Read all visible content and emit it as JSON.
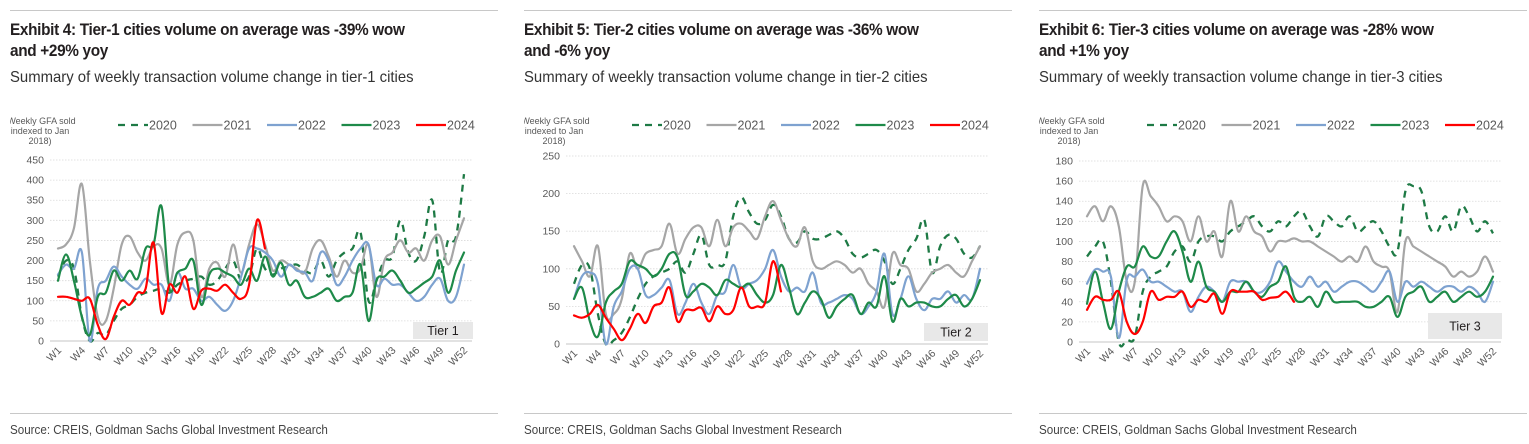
{
  "source": "Source: CREIS, Goldman Sachs Global Investment Research",
  "colors": {
    "2020": "#1e7a45",
    "2021": "#a6a6a6",
    "2022": "#7ea2d0",
    "2023": "#1e8a49",
    "2024": "#ff0000",
    "grid": "#d9d9d9",
    "tier_box": "#e8e8e8"
  },
  "chart_data": [
    {
      "type": "line",
      "title_line1": "Exhibit 4: Tier-1 cities volume on average was -39% wow",
      "title_line2": "and +29% yoy",
      "subtitle": "Summary of weekly transaction volume change in tier-1 cities",
      "ylabel": "(Weekly GFA sold indexed to Jan 2018)",
      "ylabel_lines": [
        "(Weekly GFA sold",
        "indexed to Jan",
        "2018)"
      ],
      "ylim": [
        0,
        450
      ],
      "yticks": [
        0,
        50,
        100,
        150,
        200,
        250,
        300,
        350,
        400,
        450
      ],
      "grid": true,
      "legend_position": "top",
      "tier_label": "Tier 1",
      "xtick_labels": [
        "W1",
        "W4",
        "W7",
        "W10",
        "W13",
        "W16",
        "W19",
        "W22",
        "W25",
        "W28",
        "W31",
        "W34",
        "W37",
        "W40",
        "W43",
        "W46",
        "W49",
        "W52"
      ],
      "x": [
        "W1",
        "W2",
        "W3",
        "W4",
        "W5",
        "W6",
        "W7",
        "W8",
        "W9",
        "W10",
        "W11",
        "W12",
        "W13",
        "W14",
        "W15",
        "W16",
        "W17",
        "W18",
        "W19",
        "W20",
        "W21",
        "W22",
        "W23",
        "W24",
        "W25",
        "W26",
        "W27",
        "W28",
        "W29",
        "W30",
        "W31",
        "W32",
        "W33",
        "W34",
        "W35",
        "W36",
        "W37",
        "W38",
        "W39",
        "W40",
        "W41",
        "W42",
        "W43",
        "W44",
        "W45",
        "W46",
        "W47",
        "W48",
        "W49",
        "W50",
        "W51",
        "W52"
      ],
      "series": [
        {
          "name": "2020",
          "style": "dashed",
          "values": [
            160,
            200,
            180,
            60,
            0,
            20,
            15,
            50,
            80,
            90,
            110,
            120,
            125,
            130,
            120,
            140,
            150,
            155,
            160,
            140,
            150,
            180,
            200,
            150,
            160,
            230,
            180,
            165,
            180,
            185,
            190,
            175,
            170,
            200,
            160,
            200,
            220,
            230,
            270,
            100,
            150,
            200,
            210,
            300,
            220,
            200,
            260,
            350,
            170,
            250,
            260,
            415
          ]
        },
        {
          "name": "2021",
          "style": "solid",
          "values": [
            230,
            240,
            280,
            390,
            200,
            60,
            50,
            130,
            240,
            260,
            220,
            200,
            235,
            230,
            140,
            240,
            270,
            250,
            110,
            180,
            195,
            160,
            240,
            170,
            240,
            290,
            240,
            175,
            200,
            190,
            180,
            170,
            230,
            250,
            210,
            160,
            200,
            170,
            180,
            240,
            110,
            200,
            220,
            250,
            220,
            230,
            200,
            250,
            260,
            190,
            250,
            305
          ]
        },
        {
          "name": "2022",
          "style": "solid",
          "values": [
            165,
            190,
            180,
            220,
            0,
            130,
            150,
            185,
            160,
            140,
            130,
            155,
            140,
            140,
            100,
            170,
            130,
            130,
            100,
            110,
            90,
            75,
            100,
            160,
            230,
            230,
            220,
            200,
            160,
            190,
            175,
            170,
            150,
            220,
            200,
            140,
            160,
            200,
            230,
            240,
            140,
            155,
            140,
            140,
            120,
            100,
            110,
            140,
            155,
            100,
            110,
            190
          ]
        },
        {
          "name": "2023",
          "style": "solid",
          "values": [
            150,
            215,
            150,
            60,
            15,
            110,
            120,
            175,
            150,
            175,
            155,
            230,
            240,
            335,
            130,
            170,
            180,
            200,
            90,
            165,
            180,
            170,
            160,
            140,
            180,
            150,
            210,
            160,
            195,
            140,
            150,
            110,
            110,
            120,
            130,
            100,
            110,
            120,
            190,
            50,
            150,
            160,
            175,
            150,
            120,
            130,
            145,
            160,
            200,
            120,
            175,
            220
          ]
        },
        {
          "name": "2024",
          "style": "solid",
          "values": [
            110,
            110,
            105,
            100,
            105,
            40,
            5,
            60,
            100,
            90,
            120,
            130,
            245,
            70,
            140,
            120,
            160,
            80,
            125,
            130,
            125,
            140,
            120,
            105,
            140,
            300,
            230
          ]
        }
      ]
    },
    {
      "type": "line",
      "title_line1": "Exhibit 5: Tier-2 cities volume on average was -36% wow",
      "title_line2": "and -6% yoy",
      "subtitle": "Summary of weekly transaction volume change in tier-2 cities",
      "ylabel": "(Weekly GFA sold indexed to Jan 2018)",
      "ylabel_lines": [
        "(Weekly GFA sold",
        "indexed to Jan",
        "2018)"
      ],
      "ylim": [
        0,
        250
      ],
      "yticks": [
        0,
        50,
        100,
        150,
        200,
        250
      ],
      "grid": true,
      "legend_position": "top",
      "tier_label": "Tier 2",
      "xtick_labels": [
        "W1",
        "W4",
        "W7",
        "W10",
        "W13",
        "W16",
        "W19",
        "W22",
        "W25",
        "W28",
        "W31",
        "W34",
        "W37",
        "W40",
        "W43",
        "W46",
        "W49",
        "W52"
      ],
      "x": [
        "W1",
        "W2",
        "W3",
        "W4",
        "W5",
        "W6",
        "W7",
        "W8",
        "W9",
        "W10",
        "W11",
        "W12",
        "W13",
        "W14",
        "W15",
        "W16",
        "W17",
        "W18",
        "W19",
        "W20",
        "W21",
        "W22",
        "W23",
        "W24",
        "W25",
        "W26",
        "W27",
        "W28",
        "W29",
        "W30",
        "W31",
        "W32",
        "W33",
        "W34",
        "W35",
        "W36",
        "W37",
        "W38",
        "W39",
        "W40",
        "W41",
        "W42",
        "W43",
        "W44",
        "W45",
        "W46",
        "W47",
        "W48",
        "W49",
        "W50",
        "W51",
        "W52"
      ],
      "series": [
        {
          "name": "2020",
          "style": "dashed",
          "values": [
            80,
            105,
            100,
            40,
            0,
            5,
            15,
            35,
            60,
            80,
            90,
            95,
            100,
            110,
            95,
            120,
            145,
            105,
            105,
            110,
            170,
            195,
            175,
            160,
            165,
            185,
            170,
            140,
            135,
            150,
            140,
            140,
            145,
            150,
            140,
            120,
            115,
            120,
            125,
            110,
            80,
            100,
            125,
            140,
            165,
            95,
            130,
            145,
            140,
            120,
            115,
            130
          ]
        },
        {
          "name": "2021",
          "style": "solid",
          "values": [
            130,
            110,
            90,
            130,
            40,
            40,
            60,
            120,
            100,
            120,
            125,
            130,
            160,
            120,
            140,
            155,
            155,
            130,
            165,
            130,
            155,
            160,
            150,
            140,
            170,
            190,
            165,
            140,
            130,
            155,
            110,
            100,
            105,
            110,
            105,
            95,
            100,
            80,
            70,
            50,
            120,
            105,
            100,
            70,
            80,
            95,
            100,
            105,
            95,
            90,
            110,
            130
          ]
        },
        {
          "name": "2022",
          "style": "solid",
          "values": [
            60,
            90,
            95,
            80,
            0,
            50,
            70,
            100,
            100,
            65,
            65,
            75,
            85,
            40,
            55,
            80,
            55,
            40,
            65,
            70,
            105,
            75,
            80,
            85,
            100,
            125,
            90,
            70,
            75,
            70,
            95,
            55,
            55,
            60,
            65,
            60,
            40,
            50,
            70,
            120,
            40,
            60,
            90,
            60,
            45,
            60,
            60,
            70,
            55,
            65,
            60,
            100
          ]
        },
        {
          "name": "2023",
          "style": "solid",
          "values": [
            60,
            75,
            30,
            10,
            55,
            70,
            80,
            110,
            105,
            100,
            90,
            100,
            120,
            115,
            65,
            70,
            80,
            75,
            65,
            85,
            80,
            75,
            80,
            65,
            55,
            65,
            105,
            75,
            40,
            55,
            70,
            60,
            35,
            50,
            60,
            65,
            40,
            55,
            50,
            90,
            30,
            60,
            50,
            55,
            55,
            50,
            50,
            60,
            65,
            50,
            60,
            85
          ]
        },
        {
          "name": "2024",
          "style": "solid",
          "values": [
            38,
            35,
            40,
            52,
            35,
            20,
            5,
            20,
            40,
            28,
            50,
            55,
            75,
            30,
            45,
            45,
            48,
            30,
            50,
            40,
            45,
            75,
            50,
            50,
            55,
            110,
            70
          ]
        }
      ]
    },
    {
      "type": "line",
      "title_line1": "Exhibit 6: Tier-3 cities volume on average was -28% wow",
      "title_line2": "and +1% yoy",
      "subtitle": "Summary of weekly transaction volume change in tier-3 cities",
      "ylabel": "(Weekly GFA sold indexed to Jan 2018)",
      "ylabel_lines": [
        "(Weekly GFA sold",
        "indexed to Jan",
        "2018)"
      ],
      "ylim": [
        0,
        180
      ],
      "yticks": [
        0,
        20,
        40,
        60,
        80,
        100,
        120,
        140,
        160,
        180
      ],
      "grid": true,
      "legend_position": "top",
      "tier_label": "Tier 3",
      "xtick_labels": [
        "W1",
        "W4",
        "W7",
        "W10",
        "W13",
        "W16",
        "W19",
        "W22",
        "W25",
        "W28",
        "W31",
        "W34",
        "W37",
        "W40",
        "W43",
        "W46",
        "W49",
        "W52"
      ],
      "x": [
        "W1",
        "W2",
        "W3",
        "W4",
        "W5",
        "W6",
        "W7",
        "W8",
        "W9",
        "W10",
        "W11",
        "W12",
        "W13",
        "W14",
        "W15",
        "W16",
        "W17",
        "W18",
        "W19",
        "W20",
        "W21",
        "W22",
        "W23",
        "W24",
        "W25",
        "W26",
        "W27",
        "W28",
        "W29",
        "W30",
        "W31",
        "W32",
        "W33",
        "W34",
        "W35",
        "W36",
        "W37",
        "W38",
        "W39",
        "W40",
        "W41",
        "W42",
        "W43",
        "W44",
        "W45",
        "W46",
        "W47",
        "W48",
        "W49",
        "W50",
        "W51",
        "W52"
      ],
      "series": [
        {
          "name": "2020",
          "style": "dashed",
          "values": [
            85,
            95,
            100,
            60,
            0,
            2,
            5,
            50,
            65,
            70,
            75,
            90,
            95,
            80,
            100,
            105,
            105,
            100,
            110,
            115,
            120,
            125,
            115,
            110,
            120,
            115,
            125,
            130,
            115,
            105,
            125,
            120,
            115,
            125,
            110,
            115,
            120,
            110,
            95,
            90,
            150,
            155,
            150,
            115,
            110,
            125,
            110,
            135,
            125,
            110,
            120,
            108
          ]
        },
        {
          "name": "2021",
          "style": "solid",
          "values": [
            125,
            135,
            120,
            135,
            115,
            60,
            60,
            155,
            145,
            135,
            120,
            125,
            120,
            100,
            125,
            100,
            110,
            85,
            140,
            110,
            125,
            110,
            105,
            90,
            100,
            100,
            103,
            100,
            100,
            95,
            90,
            85,
            80,
            85,
            80,
            95,
            80,
            75,
            70,
            30,
            100,
            95,
            90,
            85,
            80,
            75,
            65,
            70,
            65,
            70,
            85,
            70
          ]
        },
        {
          "name": "2022",
          "style": "solid",
          "values": [
            58,
            72,
            70,
            65,
            4,
            62,
            65,
            72,
            60,
            60,
            55,
            50,
            50,
            30,
            45,
            55,
            50,
            40,
            60,
            60,
            60,
            50,
            50,
            60,
            80,
            70,
            60,
            55,
            65,
            55,
            60,
            50,
            55,
            60,
            60,
            55,
            50,
            60,
            70,
            40,
            60,
            55,
            60,
            55,
            50,
            55,
            55,
            50,
            55,
            50,
            40,
            60
          ]
        },
        {
          "name": "2023",
          "style": "solid",
          "values": [
            38,
            70,
            40,
            13,
            50,
            75,
            75,
            95,
            85,
            85,
            100,
            110,
            90,
            60,
            80,
            55,
            50,
            40,
            50,
            50,
            60,
            50,
            45,
            55,
            60,
            75,
            45,
            40,
            45,
            35,
            50,
            40,
            40,
            40,
            40,
            35,
            35,
            40,
            45,
            25,
            45,
            50,
            55,
            40,
            45,
            50,
            40,
            45,
            50,
            45,
            50,
            65
          ]
        },
        {
          "name": "2024",
          "style": "solid",
          "values": [
            32,
            45,
            42,
            42,
            50,
            20,
            8,
            20,
            50,
            42,
            45,
            45,
            50,
            35,
            42,
            40,
            48,
            28,
            50,
            50,
            50,
            50,
            42,
            44,
            45,
            50,
            40
          ]
        }
      ]
    }
  ]
}
